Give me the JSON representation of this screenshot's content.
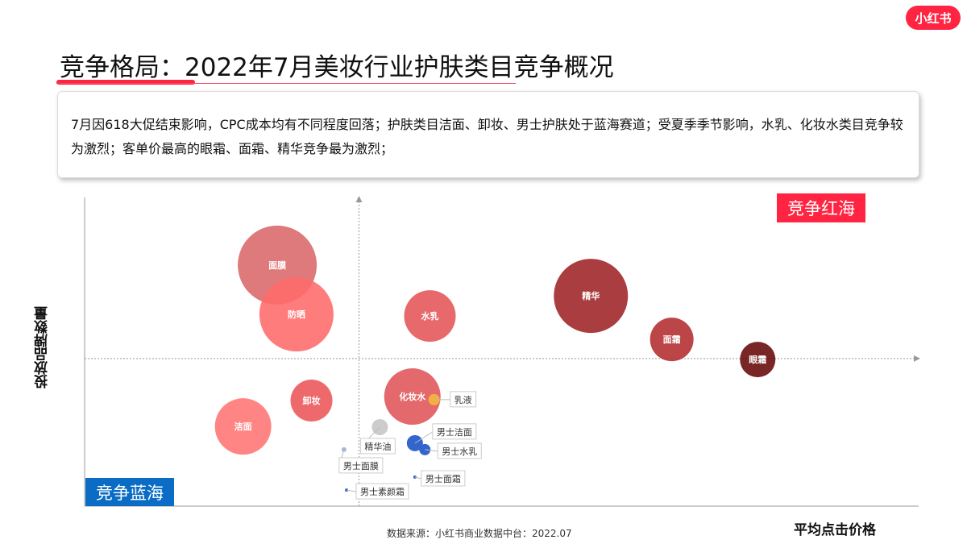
{
  "logo_text": "小红书",
  "title": "竞争格局：2022年7月美妆行业护肤类目竞争概况",
  "description": "7月因618大促结束影响，CPC成本均有不同程度回落；护肤类目洁面、卸妆、男士护肤处于蓝海赛道；受夏季季节影响，水乳、化妆水类目竞争较为激烈；客单价最高的眼霜、面霜、精华竞争最为激烈；",
  "source": "数据来源：小红书商业数据中台：2022.07",
  "chart_data": {
    "type": "scatter",
    "subtype": "bubble",
    "xlabel": "平均点击价格",
    "ylabel": "投放品牌数量",
    "quadrant_labels": {
      "top_right": "竞争红海",
      "bottom_left": "竞争蓝海"
    },
    "quadrant_divider": {
      "x": 32.9,
      "y": 47.8
    },
    "xlim": [
      0,
      100
    ],
    "ylim": [
      0,
      100
    ],
    "grid": false,
    "points": [
      {
        "name": "面膜",
        "x": 23.1,
        "y": 78.1,
        "size": 49,
        "color": "#d9676a"
      },
      {
        "name": "防晒",
        "x": 25.4,
        "y": 62.1,
        "size": 46,
        "color": "#ff6a6a"
      },
      {
        "name": "水乳",
        "x": 41.4,
        "y": 61.6,
        "size": 32,
        "color": "#e55457"
      },
      {
        "name": "精华",
        "x": 60.7,
        "y": 68.1,
        "size": 46,
        "color": "#9e2226"
      },
      {
        "name": "面霜",
        "x": 70.4,
        "y": 54.0,
        "size": 27,
        "color": "#b22b2e"
      },
      {
        "name": "眼霜",
        "x": 80.7,
        "y": 47.5,
        "size": 22,
        "color": "#650808"
      },
      {
        "name": "化妆水",
        "x": 39.3,
        "y": 35.5,
        "size": 35,
        "color": "#e05458"
      },
      {
        "name": "乳液",
        "x": 41.9,
        "y": 34.5,
        "size": 7,
        "color": "#f4b03e"
      },
      {
        "name": "卸妆",
        "x": 27.2,
        "y": 34.2,
        "size": 26,
        "color": "#ec5458"
      },
      {
        "name": "洁面",
        "x": 19.0,
        "y": 25.8,
        "size": 35,
        "color": "#ff7474"
      },
      {
        "name": "精华油",
        "x": 35.4,
        "y": 25.6,
        "size": 10,
        "color": "#cccccc"
      },
      {
        "name": "男士洁面",
        "x": 39.6,
        "y": 20.4,
        "size": 10,
        "color": "#3366cc"
      },
      {
        "name": "男士水乳",
        "x": 40.8,
        "y": 18.3,
        "size": 7,
        "color": "#3366cc"
      },
      {
        "name": "男士面膜",
        "x": 31.1,
        "y": 18.3,
        "size": 3,
        "color": "#a8b4dd"
      },
      {
        "name": "男士面霜",
        "x": 39.6,
        "y": 9.4,
        "size": 2,
        "color": "#3366cc"
      },
      {
        "name": "男士素颜霜",
        "x": 31.4,
        "y": 5.2,
        "size": 2,
        "color": "#3366cc"
      }
    ]
  }
}
